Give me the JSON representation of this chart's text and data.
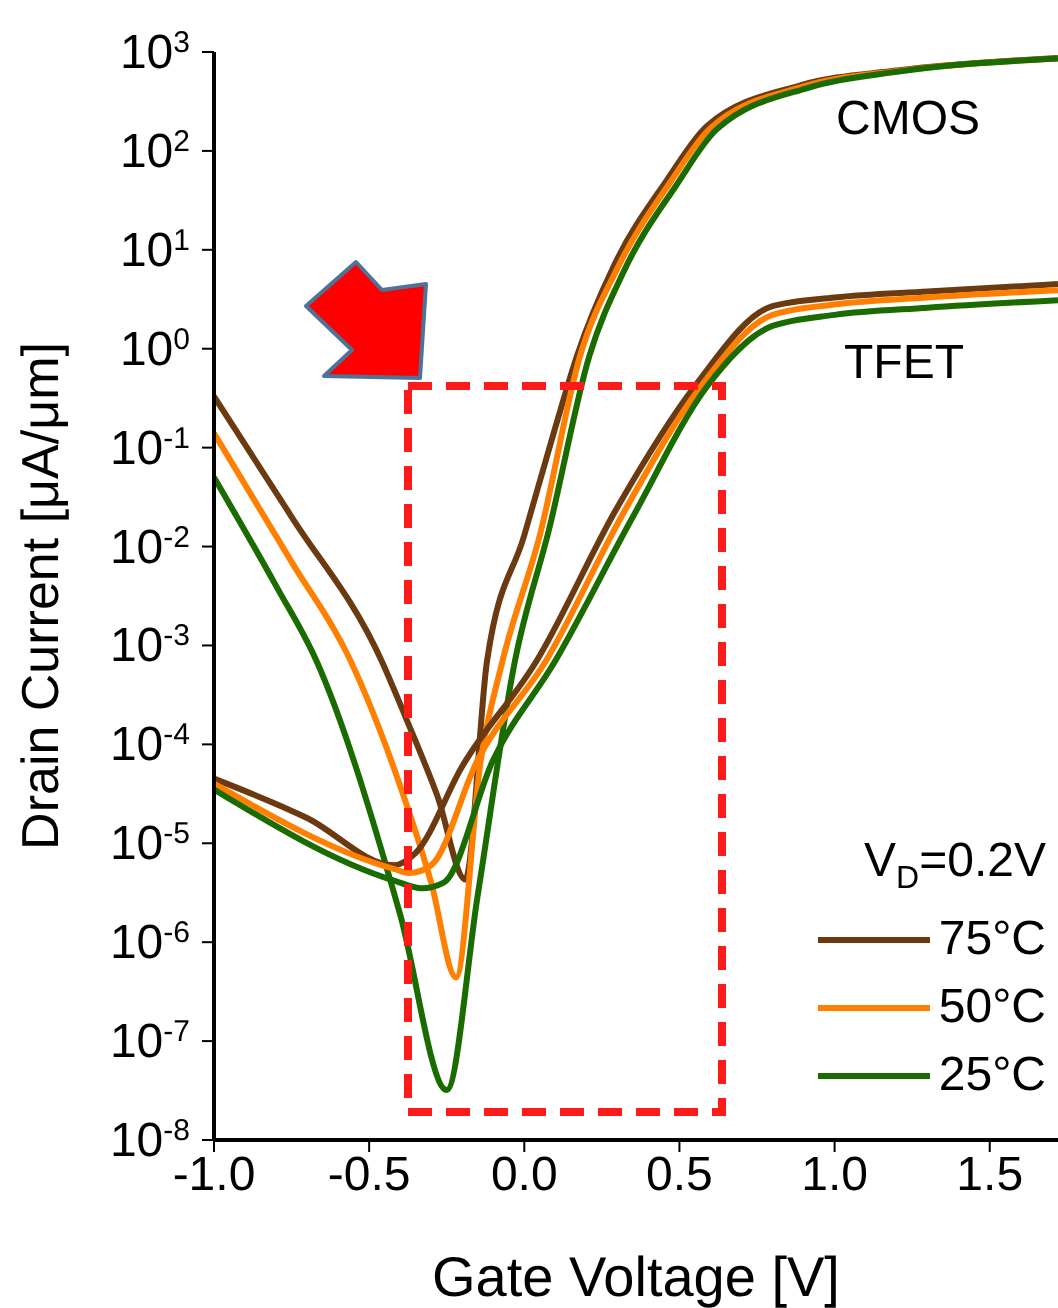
{
  "chart_data": {
    "type": "line",
    "xlabel": "Gate Voltage [V]",
    "ylabel": "Drain Current [μA/μm]",
    "legend_title": "V$_{D}$=0.2V",
    "log": "y",
    "xlim": [
      -1,
      1.72
    ],
    "xticks": [
      {
        "value": -1,
        "label": "-1.0"
      },
      {
        "value": -0.5,
        "label": "-0.5"
      },
      {
        "value": 0,
        "label": "0.0"
      },
      {
        "value": 0.5,
        "label": "0.5"
      },
      {
        "value": 1,
        "label": "1.0"
      },
      {
        "value": 1.5,
        "label": "1.5"
      }
    ],
    "ylim": [
      1e-08,
      1000
    ],
    "yticks": [
      {
        "value": 1e-08,
        "label": "10$^{-8}$"
      },
      {
        "value": 1e-07,
        "label": "10$^{-7}$"
      },
      {
        "value": 1e-06,
        "label": "10$^{-6}$"
      },
      {
        "value": 1e-05,
        "label": "10$^{-5}$"
      },
      {
        "value": 0.0001,
        "label": "10$^{-4}$"
      },
      {
        "value": 0.001,
        "label": "10$^{-3}$"
      },
      {
        "value": 0.01,
        "label": "10$^{-2}$"
      },
      {
        "value": 0.1,
        "label": "10$^{-1}$"
      },
      {
        "value": 1,
        "label": "10$^{0}$"
      },
      {
        "value": 10,
        "label": "10$^{1}$"
      },
      {
        "value": 100,
        "label": "10$^{2}$"
      },
      {
        "value": 1000,
        "label": "10$^{3}$"
      }
    ],
    "grid": false,
    "legend": "bottom right",
    "line_style": "solid",
    "marker": "none",
    "series": [
      {
        "name": "75°C",
        "color": "#6b3a10",
        "x": [
          -1,
          -0.75,
          -0.46,
          -0.38,
          -0.28,
          -0.19,
          -0.12,
          0,
          0.1,
          0.17,
          0.29,
          0.46,
          0.59,
          0.89,
          1.2,
          1.72
        ],
        "values": [
          0.33,
          0.02,
          0.0007,
          0.00018,
          3e-05,
          4.3e-06,
          0.0007,
          0.013,
          0.16,
          0.85,
          7,
          51,
          180,
          460,
          650,
          870
        ]
      },
      {
        "name": "50°C",
        "color": "#ff8000",
        "x": [
          -1,
          -0.75,
          -0.56,
          -0.4,
          -0.3,
          -0.22,
          -0.14,
          -0.07,
          0.05,
          0.18,
          0.3,
          0.47,
          0.6,
          0.9,
          1.2,
          1.72
        ],
        "values": [
          0.14,
          0.007,
          0.0007,
          3.8e-05,
          4e-06,
          4.4e-07,
          7e-05,
          0.0007,
          0.013,
          0.85,
          6.5,
          48,
          170,
          450,
          640,
          860
        ]
      },
      {
        "name": "25°C",
        "color": "#1a6b00",
        "x": [
          -1,
          -0.8,
          -0.67,
          -0.4,
          -0.25,
          -0.15,
          -0.03,
          0.08,
          0.21,
          0.32,
          0.49,
          0.62,
          0.92,
          1.2,
          1.72
        ],
        "values": [
          0.05,
          0.004,
          0.0007,
          1.9e-06,
          3.2e-08,
          3e-06,
          0.0007,
          0.015,
          0.85,
          6,
          45,
          165,
          440,
          630,
          860
        ]
      },
      {
        "color": "#6b3a10",
        "x": [
          -1,
          -0.7,
          -0.42,
          -0.35,
          -0.2,
          0.04,
          0.3,
          0.55,
          0.8,
          1,
          1.3,
          1.72
        ],
        "values": [
          4.5e-05,
          1.8e-05,
          6e-06,
          8e-06,
          6e-05,
          0.0007,
          0.025,
          0.42,
          2.7,
          3.3,
          3.8,
          4.5
        ]
      },
      {
        "color": "#ff8000",
        "x": [
          -1,
          -0.42,
          -0.37,
          -0.3,
          -0.15,
          0.07,
          0.32,
          0.57,
          0.8,
          1,
          1.3,
          1.72
        ],
        "values": [
          4e-05,
          5.5e-06,
          5e-06,
          6e-06,
          7e-05,
          0.0007,
          0.022,
          0.42,
          2.2,
          2.8,
          3.3,
          3.9
        ]
      },
      {
        "color": "#1a6b00",
        "x": [
          -1,
          -0.42,
          -0.33,
          -0.26,
          -0.1,
          0.1,
          0.35,
          0.59,
          0.8,
          1,
          1.3,
          1.72
        ],
        "values": [
          3.5e-05,
          4.2e-06,
          3.5e-06,
          4e-06,
          7e-05,
          0.0007,
          0.02,
          0.42,
          1.7,
          2.2,
          2.6,
          3.1
        ]
      }
    ],
    "annotations": [
      "CMOS",
      "TFET"
    ]
  }
}
